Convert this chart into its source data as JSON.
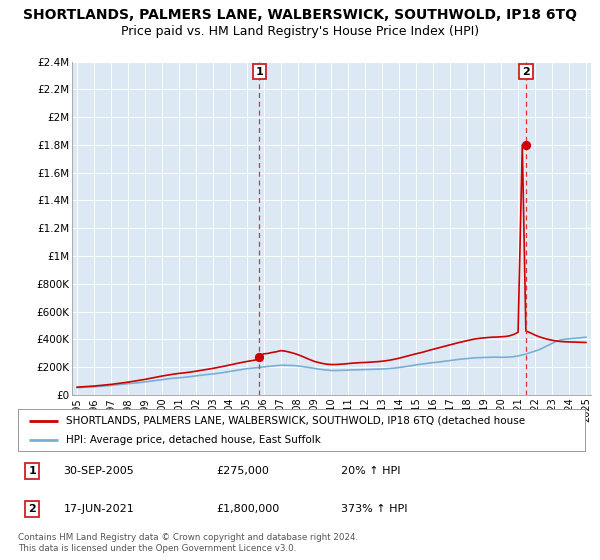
{
  "title": "SHORTLANDS, PALMERS LANE, WALBERSWICK, SOUTHWOLD, IP18 6TQ",
  "subtitle": "Price paid vs. HM Land Registry's House Price Index (HPI)",
  "title_fontsize": 10,
  "subtitle_fontsize": 9,
  "bg_color": "#ffffff",
  "plot_bg_color": "#dce9f5",
  "grid_color": "#ffffff",
  "ylim": [
    0,
    2400000
  ],
  "yticks": [
    0,
    200000,
    400000,
    600000,
    800000,
    1000000,
    1200000,
    1400000,
    1600000,
    1800000,
    2000000,
    2200000,
    2400000
  ],
  "ytick_labels": [
    "£0",
    "£200K",
    "£400K",
    "£600K",
    "£800K",
    "£1M",
    "£1.2M",
    "£1.4M",
    "£1.6M",
    "£1.8M",
    "£2M",
    "£2.2M",
    "£2.4M"
  ],
  "xlim_start": 1994.7,
  "xlim_end": 2025.3,
  "xticks": [
    1995,
    1996,
    1997,
    1998,
    1999,
    2000,
    2001,
    2002,
    2003,
    2004,
    2005,
    2006,
    2007,
    2008,
    2009,
    2010,
    2011,
    2012,
    2013,
    2014,
    2015,
    2016,
    2017,
    2018,
    2019,
    2020,
    2021,
    2022,
    2023,
    2024,
    2025
  ],
  "hpi_x": [
    1995,
    1995.25,
    1995.5,
    1995.75,
    1996,
    1996.25,
    1996.5,
    1996.75,
    1997,
    1997.25,
    1997.5,
    1997.75,
    1998,
    1998.25,
    1998.5,
    1998.75,
    1999,
    1999.25,
    1999.5,
    1999.75,
    2000,
    2000.25,
    2000.5,
    2000.75,
    2001,
    2001.25,
    2001.5,
    2001.75,
    2002,
    2002.25,
    2002.5,
    2002.75,
    2003,
    2003.25,
    2003.5,
    2003.75,
    2004,
    2004.25,
    2004.5,
    2004.75,
    2005,
    2005.25,
    2005.5,
    2005.75,
    2006,
    2006.25,
    2006.5,
    2006.75,
    2007,
    2007.25,
    2007.5,
    2007.75,
    2008,
    2008.25,
    2008.5,
    2008.75,
    2009,
    2009.25,
    2009.5,
    2009.75,
    2010,
    2010.25,
    2010.5,
    2010.75,
    2011,
    2011.25,
    2011.5,
    2011.75,
    2012,
    2012.25,
    2012.5,
    2012.75,
    2013,
    2013.25,
    2013.5,
    2013.75,
    2014,
    2014.25,
    2014.5,
    2014.75,
    2015,
    2015.25,
    2015.5,
    2015.75,
    2016,
    2016.25,
    2016.5,
    2016.75,
    2017,
    2017.25,
    2017.5,
    2017.75,
    2018,
    2018.25,
    2018.5,
    2018.75,
    2019,
    2019.25,
    2019.5,
    2019.75,
    2020,
    2020.25,
    2020.5,
    2020.75,
    2021,
    2021.25,
    2021.5,
    2021.75,
    2022,
    2022.25,
    2022.5,
    2022.75,
    2023,
    2023.25,
    2023.5,
    2023.75,
    2024,
    2024.25,
    2024.5,
    2024.75,
    2025
  ],
  "hpi_y": [
    52000,
    53000,
    55000,
    56000,
    58000,
    60000,
    62000,
    65000,
    68000,
    71000,
    74000,
    77000,
    80000,
    83000,
    86000,
    89000,
    93000,
    97000,
    101000,
    105000,
    109000,
    113000,
    117000,
    120000,
    123000,
    125000,
    128000,
    132000,
    136000,
    140000,
    144000,
    147000,
    150000,
    154000,
    158000,
    163000,
    168000,
    173000,
    178000,
    183000,
    188000,
    191000,
    194000,
    197000,
    201000,
    204000,
    207000,
    210000,
    213000,
    213000,
    212000,
    211000,
    208000,
    204000,
    200000,
    195000,
    190000,
    185000,
    181000,
    178000,
    175000,
    175000,
    176000,
    177000,
    178000,
    179000,
    180000,
    181000,
    182000,
    183000,
    184000,
    185000,
    186000,
    188000,
    190000,
    193000,
    197000,
    201000,
    206000,
    211000,
    216000,
    220000,
    224000,
    228000,
    232000,
    235000,
    239000,
    243000,
    247000,
    251000,
    255000,
    258000,
    261000,
    264000,
    267000,
    268000,
    269000,
    270000,
    271000,
    271000,
    270000,
    271000,
    272000,
    275000,
    280000,
    287000,
    295000,
    305000,
    315000,
    325000,
    340000,
    355000,
    370000,
    385000,
    395000,
    400000,
    403000,
    406000,
    409000,
    412000,
    415000
  ],
  "red_x": [
    1995,
    1995.25,
    1995.5,
    1995.75,
    1996,
    1996.25,
    1996.5,
    1996.75,
    1997,
    1997.25,
    1997.5,
    1997.75,
    1998,
    1998.25,
    1998.5,
    1998.75,
    1999,
    1999.25,
    1999.5,
    1999.75,
    2000,
    2000.25,
    2000.5,
    2000.75,
    2001,
    2001.25,
    2001.5,
    2001.75,
    2002,
    2002.25,
    2002.5,
    2002.75,
    2003,
    2003.25,
    2003.5,
    2003.75,
    2004,
    2004.25,
    2004.5,
    2004.75,
    2005,
    2005.25,
    2005.5,
    2005.75,
    2006,
    2006.25,
    2006.5,
    2006.75,
    2007,
    2007.25,
    2007.5,
    2007.75,
    2008,
    2008.25,
    2008.5,
    2008.75,
    2009,
    2009.25,
    2009.5,
    2009.75,
    2010,
    2010.25,
    2010.5,
    2010.75,
    2011,
    2011.25,
    2011.5,
    2011.75,
    2012,
    2012.25,
    2012.5,
    2012.75,
    2013,
    2013.25,
    2013.5,
    2013.75,
    2014,
    2014.25,
    2014.5,
    2014.75,
    2015,
    2015.25,
    2015.5,
    2015.75,
    2016,
    2016.25,
    2016.5,
    2016.75,
    2017,
    2017.25,
    2017.5,
    2017.75,
    2018,
    2018.25,
    2018.5,
    2018.75,
    2019,
    2019.25,
    2019.5,
    2019.75,
    2020,
    2020.25,
    2020.5,
    2020.75,
    2021,
    2021.25,
    2021.46,
    2021.75,
    2022,
    2022.25,
    2022.5,
    2022.75,
    2023,
    2023.25,
    2023.5,
    2023.75,
    2024,
    2024.25,
    2024.5,
    2024.75,
    2025
  ],
  "red_y": [
    55000,
    57000,
    59000,
    61000,
    63000,
    66000,
    69000,
    72000,
    75000,
    79000,
    83000,
    87000,
    91000,
    96000,
    101000,
    106000,
    111000,
    117000,
    123000,
    129000,
    135000,
    140000,
    145000,
    150000,
    154000,
    157000,
    161000,
    165000,
    170000,
    175000,
    180000,
    185000,
    190000,
    196000,
    202000,
    208000,
    215000,
    221000,
    228000,
    234000,
    240000,
    245000,
    250000,
    275000,
    295000,
    298000,
    305000,
    310000,
    318000,
    315000,
    308000,
    300000,
    290000,
    278000,
    265000,
    252000,
    240000,
    232000,
    225000,
    220000,
    218000,
    218000,
    220000,
    222000,
    225000,
    228000,
    230000,
    232000,
    233000,
    235000,
    237000,
    239000,
    242000,
    246000,
    251000,
    257000,
    264000,
    272000,
    280000,
    288000,
    296000,
    303000,
    311000,
    320000,
    328000,
    336000,
    344000,
    352000,
    360000,
    368000,
    376000,
    383000,
    390000,
    397000,
    403000,
    407000,
    410000,
    413000,
    415000,
    416000,
    418000,
    420000,
    425000,
    435000,
    450000,
    1800000,
    460000,
    445000,
    430000,
    418000,
    408000,
    400000,
    393000,
    388000,
    384000,
    382000,
    381000,
    380000,
    379000,
    378000,
    377000
  ],
  "sale1_x": 2005.75,
  "sale1_y": 275000,
  "sale2_x": 2021.46,
  "sale2_y": 1800000,
  "line_red": "#cc0000",
  "line_blue": "#7aafd4",
  "vline_color": "#dd3333",
  "sale_dot_color": "#cc0000",
  "legend_label1": "SHORTLANDS, PALMERS LANE, WALBERSWICK, SOUTHWOLD, IP18 6TQ (detached house",
  "legend_label2": "HPI: Average price, detached house, East Suffolk",
  "annotation1_num": "1",
  "annotation1_date": "30-SEP-2005",
  "annotation1_price": "£275,000",
  "annotation1_hpi": "20% ↑ HPI",
  "annotation2_num": "2",
  "annotation2_date": "17-JUN-2021",
  "annotation2_price": "£1,800,000",
  "annotation2_hpi": "373% ↑ HPI",
  "footnote": "Contains HM Land Registry data © Crown copyright and database right 2024.\nThis data is licensed under the Open Government Licence v3.0."
}
